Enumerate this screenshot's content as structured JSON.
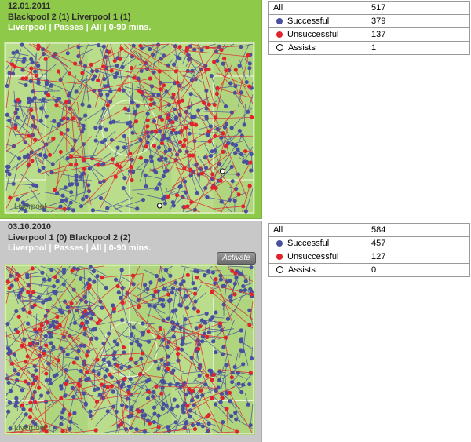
{
  "colors": {
    "successful": "#4a4fa0",
    "unsuccessful": "#e0242e",
    "pitch": "#b9dd8b",
    "pitch_lines": "#e8f5d6"
  },
  "matches": [
    {
      "date": "12.01.2011",
      "score": "Blackpool 2 (1) Liverpool 1 (1)",
      "filter": "Liverpool | Passes | All | 0-90 mins.",
      "team_tag": "Liverpool",
      "stats": {
        "all_label": "All",
        "all_value": "517",
        "successful_label": "Successful",
        "successful_value": "379",
        "unsuccessful_label": "Unsuccessful",
        "unsuccessful_value": "137",
        "assists_label": "Assists",
        "assists_value": "1"
      }
    },
    {
      "date": "03.10.2010",
      "score": "Liverpool 1 (0) Blackpool 2 (2)",
      "filter": "Liverpool | Passes | All | 0-90 mins.",
      "team_tag": "Liverpool",
      "activate_label": "Activate",
      "stats": {
        "all_label": "All",
        "all_value": "584",
        "successful_label": "Successful",
        "successful_value": "457",
        "unsuccessful_label": "Unsuccessful",
        "unsuccessful_value": "127",
        "assists_label": "Assists",
        "assists_value": "0"
      }
    }
  ]
}
